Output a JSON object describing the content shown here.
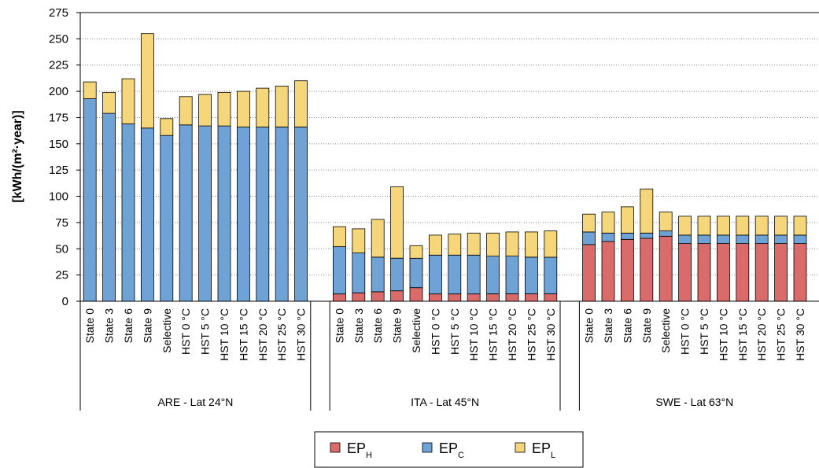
{
  "chart_data": {
    "type": "bar",
    "stacked": true,
    "ylabel": "[kWh/(m²·year)]",
    "ylim": [
      0,
      275
    ],
    "yticks": [
      0,
      25,
      50,
      75,
      100,
      125,
      150,
      175,
      200,
      225,
      250,
      275
    ],
    "grid": true,
    "legend_position": "bottom",
    "categories": [
      "State 0",
      "State 3",
      "State 6",
      "State 9",
      "Selective",
      "HST 0 °C",
      "HST 5 °C",
      "HST 10 °C",
      "HST 15 °C",
      "HST 20 °C",
      "HST 25 °C",
      "HST 30 °C"
    ],
    "groups": [
      {
        "label": "ARE - Lat 24°N",
        "series": [
          {
            "name": "EP_H",
            "values": [
              0,
              0,
              0,
              0,
              0,
              0,
              0,
              0,
              0,
              0,
              0,
              0
            ]
          },
          {
            "name": "EP_C",
            "values": [
              193,
              179,
              169,
              165,
              158,
              168,
              167,
              167,
              166,
              166,
              166,
              166
            ]
          },
          {
            "name": "EP_L",
            "values": [
              16,
              20,
              43,
              90,
              16,
              27,
              30,
              32,
              34,
              37,
              39,
              44
            ]
          }
        ]
      },
      {
        "label": "ITA - Lat 45°N",
        "series": [
          {
            "name": "EP_H",
            "values": [
              7,
              8,
              9,
              10,
              13,
              7,
              7,
              7,
              7,
              7,
              7,
              7
            ]
          },
          {
            "name": "EP_C",
            "values": [
              45,
              38,
              33,
              31,
              28,
              37,
              37,
              37,
              36,
              36,
              35,
              35
            ]
          },
          {
            "name": "EP_L",
            "values": [
              19,
              23,
              36,
              68,
              12,
              19,
              20,
              21,
              22,
              23,
              24,
              25
            ]
          }
        ]
      },
      {
        "label": "SWE - Lat 63°N",
        "series": [
          {
            "name": "EP_H",
            "values": [
              54,
              57,
              59,
              60,
              62,
              55,
              55,
              55,
              55,
              55,
              55,
              55
            ]
          },
          {
            "name": "EP_C",
            "values": [
              12,
              8,
              6,
              5,
              5,
              8,
              8,
              8,
              8,
              8,
              8,
              8
            ]
          },
          {
            "name": "EP_L",
            "values": [
              17,
              20,
              25,
              42,
              18,
              18,
              18,
              18,
              18,
              18,
              18,
              18
            ]
          }
        ]
      }
    ],
    "legend": [
      {
        "base": "EP",
        "sub": "H",
        "color": "#d96b6b"
      },
      {
        "base": "EP",
        "sub": "C",
        "color": "#6fa3d6"
      },
      {
        "base": "EP",
        "sub": "L",
        "color": "#f6d67a"
      }
    ]
  }
}
